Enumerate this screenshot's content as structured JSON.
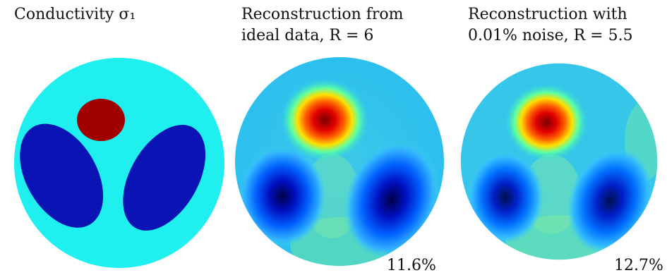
{
  "panels": [
    {
      "title_lines": [
        "Conductivity σ₁"
      ]
    },
    {
      "title_lines": [
        "Reconstruction from",
        "ideal data, R = 6"
      ],
      "error_label": "11.6%"
    },
    {
      "title_lines": [
        "Reconstruction with",
        "0.01% noise, R = 5.5"
      ],
      "error_label": "12.7%"
    }
  ],
  "colors": {
    "background_fluid": "#1ff0ef",
    "inclusion_high": "#a00000",
    "inclusion_low": "#0a14b4"
  },
  "colormap": "jet"
}
